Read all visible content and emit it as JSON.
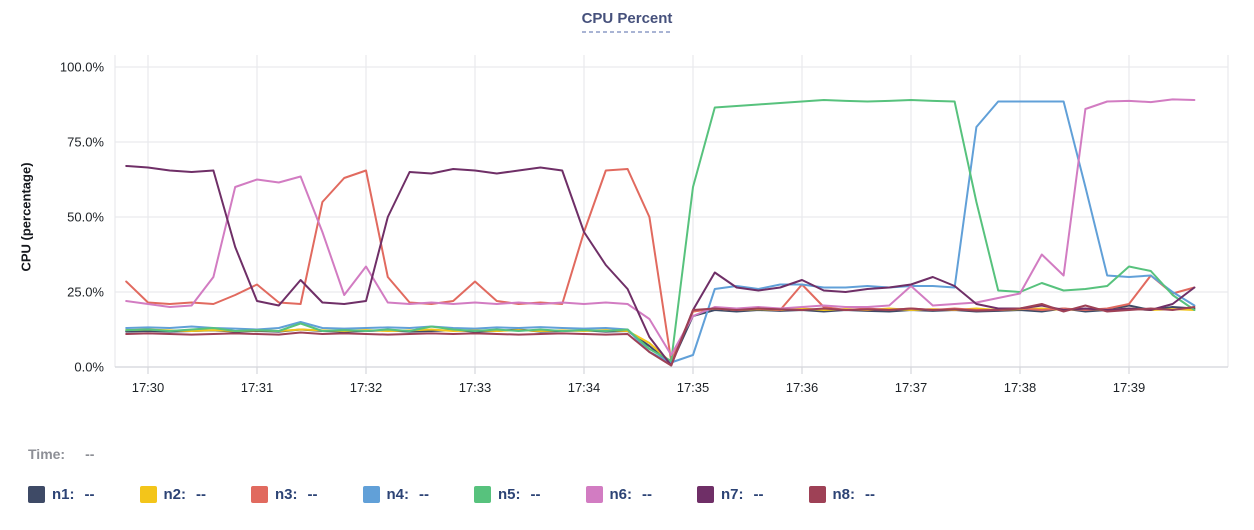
{
  "title": {
    "text": "CPU Percent"
  },
  "y_axis": {
    "title": "CPU (percentage)"
  },
  "status": {
    "time_label": "Time:",
    "time_value": "--"
  },
  "legend": [
    {
      "name": "n1",
      "label": "n1:",
      "value": "--",
      "color": "#3e4a66"
    },
    {
      "name": "n2",
      "label": "n2:",
      "value": "--",
      "color": "#f3c51a"
    },
    {
      "name": "n3",
      "label": "n3:",
      "value": "--",
      "color": "#e16a5f"
    },
    {
      "name": "n4",
      "label": "n4:",
      "value": "--",
      "color": "#61a0d8"
    },
    {
      "name": "n5",
      "label": "n5:",
      "value": "--",
      "color": "#57c27d"
    },
    {
      "name": "n6",
      "label": "n6:",
      "value": "--",
      "color": "#d27cc2"
    },
    {
      "name": "n7",
      "label": "n7:",
      "value": "--",
      "color": "#6f2f67"
    },
    {
      "name": "n8",
      "label": "n8:",
      "value": "--",
      "color": "#9e4156"
    }
  ],
  "chart_data": {
    "type": "line",
    "title": "CPU Percent",
    "xlabel": "",
    "ylabel": "CPU (percentage)",
    "x_unit": "minutes since 17:30",
    "xlim": [
      -0.35,
      9.9
    ],
    "ylim": [
      0,
      100
    ],
    "grid": true,
    "legend_position": "bottom",
    "x_tick_values": [
      0,
      1,
      2,
      3,
      4,
      5,
      6,
      7,
      8,
      9
    ],
    "x_tick_labels": [
      "17:30",
      "17:31",
      "17:32",
      "17:33",
      "17:34",
      "17:35",
      "17:36",
      "17:37",
      "17:38",
      "17:39"
    ],
    "y_tick_values": [
      100,
      75,
      50,
      25,
      0
    ],
    "y_tick_labels": [
      "100.0%",
      "75.0%",
      "50.0%",
      "25.0%",
      "0.0%"
    ],
    "x": [
      -0.2,
      0,
      0.2,
      0.4,
      0.6,
      0.8,
      1,
      1.2,
      1.4,
      1.6,
      1.8,
      2,
      2.2,
      2.4,
      2.6,
      2.8,
      3,
      3.2,
      3.4,
      3.6,
      3.8,
      4,
      4.2,
      4.4,
      4.6,
      4.8,
      5,
      5.2,
      5.4,
      5.6,
      5.8,
      6,
      6.2,
      6.4,
      6.6,
      6.8,
      7,
      7.2,
      7.4,
      7.6,
      7.8,
      8,
      8.2,
      8.4,
      8.6,
      8.8,
      9,
      9.2,
      9.4,
      9.6
    ],
    "series": [
      {
        "name": "n1",
        "color": "#3e4a66",
        "values": [
          11.8,
          12,
          11.8,
          12,
          12.2,
          11.8,
          12,
          11.8,
          12.5,
          12,
          11.8,
          12,
          12.2,
          11.8,
          12,
          12.3,
          11.8,
          12,
          12.5,
          11.8,
          12,
          12.2,
          11.8,
          12,
          7,
          1,
          17,
          19,
          18.5,
          19,
          18.7,
          19,
          18.5,
          19,
          18.7,
          18.5,
          19,
          18.7,
          19,
          18.5,
          18.7,
          19,
          18.5,
          19.5,
          18.5,
          19,
          20.5,
          19,
          20,
          19.5
        ]
      },
      {
        "name": "n2",
        "color": "#f3c51a",
        "values": [
          12.3,
          12.5,
          12.2,
          12,
          12.3,
          12,
          12.2,
          12,
          12.5,
          12.2,
          12,
          12.3,
          12,
          12.2,
          12.5,
          12,
          12.2,
          12,
          12.3,
          12,
          12.2,
          12,
          12.3,
          12,
          8,
          1.5,
          18.5,
          19.5,
          19,
          19.3,
          19,
          19.5,
          19,
          19.3,
          19,
          19.5,
          19,
          19.3,
          19,
          19.5,
          19,
          19.3,
          19.5,
          19,
          19.3,
          19,
          19.5,
          19,
          19.3,
          19
        ]
      },
      {
        "name": "n3",
        "color": "#e16a5f",
        "values": [
          28.5,
          21.5,
          21,
          21.5,
          21,
          24,
          27.5,
          21.5,
          21,
          55,
          63,
          65.5,
          30,
          21.5,
          21,
          22,
          28.5,
          22,
          21,
          21.5,
          21,
          45,
          65.5,
          66,
          50,
          2,
          18.5,
          19.5,
          19,
          19.5,
          19,
          27.5,
          20,
          19,
          19.5,
          19,
          19.5,
          19,
          19.5,
          19,
          19,
          19.5,
          19,
          19.5,
          19,
          19.5,
          21,
          30.5,
          24.5,
          26.5
        ]
      },
      {
        "name": "n4",
        "color": "#61a0d8",
        "values": [
          13,
          13.2,
          13,
          13.5,
          13,
          12.8,
          12.5,
          13,
          15,
          13,
          12.8,
          13,
          13.2,
          13,
          13.5,
          13,
          12.8,
          13.2,
          13,
          13.3,
          13,
          12.8,
          13,
          12.5,
          5,
          1.5,
          4,
          26,
          27,
          26,
          27.5,
          27.5,
          26.5,
          26.5,
          27,
          26.5,
          27,
          27,
          26.5,
          80,
          88.5,
          88.5,
          88.5,
          88.5,
          60,
          30.5,
          30,
          30.5,
          25,
          20.5
        ]
      },
      {
        "name": "n5",
        "color": "#57c27d",
        "values": [
          12.3,
          12.5,
          12,
          12.5,
          13,
          12,
          12.3,
          12,
          14.5,
          12,
          12.3,
          12,
          12.5,
          12,
          13.5,
          12.5,
          12,
          12.5,
          12,
          12.5,
          12,
          12.3,
          12,
          12.5,
          6,
          2,
          60,
          86.5,
          87,
          87.5,
          88,
          88.5,
          89,
          88.7,
          88.5,
          88.7,
          89,
          88.7,
          88.5,
          55,
          25.5,
          25,
          28,
          25.5,
          26,
          27,
          33.5,
          32,
          24,
          19
        ]
      },
      {
        "name": "n6",
        "color": "#d27cc2",
        "values": [
          22,
          21,
          20,
          20.5,
          30,
          60,
          62.5,
          61.5,
          63.5,
          45,
          24,
          33.5,
          21.5,
          21,
          21.5,
          21,
          21.5,
          21,
          21.5,
          21,
          21.5,
          21,
          21.5,
          21,
          16,
          4,
          17,
          20,
          19.5,
          20,
          19.5,
          20,
          20.5,
          20,
          20,
          20.5,
          27,
          20.5,
          21,
          21.5,
          23,
          24.5,
          37.5,
          30.5,
          86,
          88.5,
          88.7,
          88.3,
          89.2,
          89
        ]
      },
      {
        "name": "n7",
        "color": "#6f2f67",
        "values": [
          67,
          66.5,
          65.5,
          65,
          65.5,
          40,
          22,
          20.5,
          29,
          21.5,
          21,
          22,
          50,
          65,
          64.5,
          66,
          65.5,
          64.5,
          65.5,
          66.5,
          65.5,
          45,
          34,
          26,
          10,
          0.5,
          19,
          31.5,
          26.5,
          25.5,
          26.5,
          29,
          25.5,
          25,
          26,
          26.5,
          27.5,
          30,
          27,
          21,
          19.5,
          19.5,
          20.5,
          19,
          19.5,
          19,
          19.5,
          19,
          21,
          26.5
        ]
      },
      {
        "name": "n8",
        "color": "#9e4156",
        "values": [
          11,
          11.2,
          11,
          10.8,
          11,
          11.2,
          11,
          10.8,
          11.5,
          11,
          11.2,
          11,
          10.8,
          11,
          11.2,
          11,
          11.2,
          11,
          10.8,
          11,
          11.2,
          11,
          10.8,
          11,
          5,
          0.5,
          19,
          19.5,
          19,
          19.5,
          19.2,
          19,
          19.5,
          19,
          19.2,
          19,
          19.5,
          19,
          19.2,
          18.8,
          19,
          19.5,
          21,
          18.5,
          20.5,
          18.5,
          19,
          19.5,
          19,
          20
        ]
      }
    ]
  }
}
